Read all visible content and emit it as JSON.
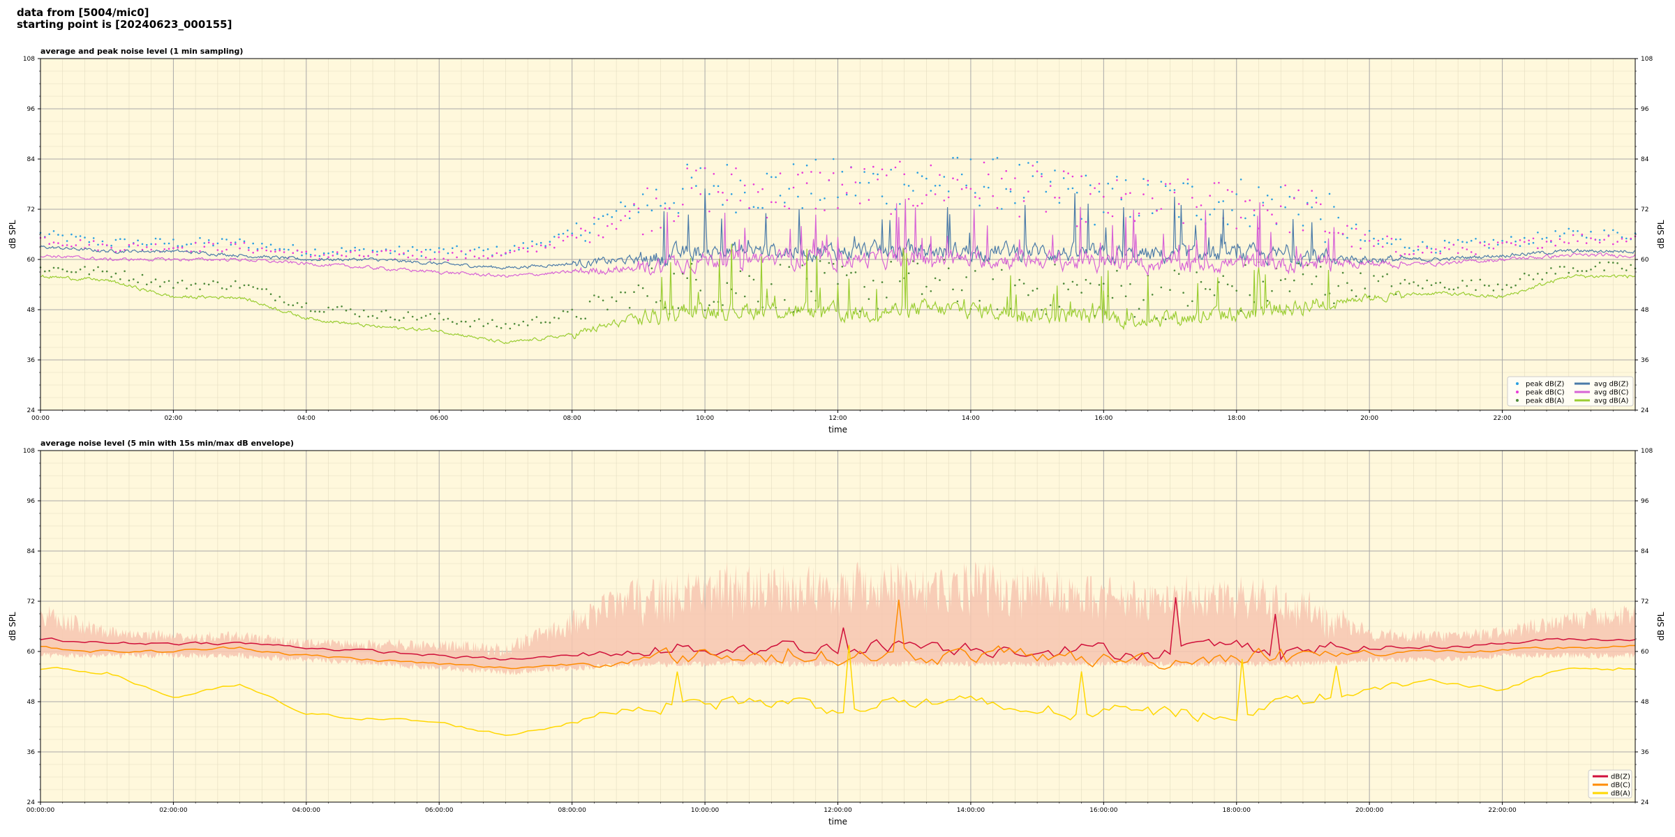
{
  "header": {
    "line1": "data from [5004/mic0]",
    "line2": "starting point is [20240623_000155]"
  },
  "colors": {
    "background": "#fff8dc",
    "dBZ_top": "#4a7aa8",
    "dBC_top": "#d763d6",
    "dBA_top": "#9acd32",
    "dBZ_bottom": "#d0103a",
    "dBC_bottom": "#ff8c00",
    "dBA_bottom": "#ffd700",
    "envelope": "#f7c5b0"
  },
  "chart_data": [
    {
      "type": "line",
      "title": "average and peak noise level (1 min sampling)",
      "xlabel": "time",
      "ylabel": "dB SPL",
      "xlim": [
        0,
        24
      ],
      "ylim": [
        24,
        108
      ],
      "x_ticks": [
        0,
        2,
        4,
        6,
        8,
        10,
        12,
        14,
        16,
        18,
        20,
        22
      ],
      "x_tick_labels": [
        "00:00",
        "02:00",
        "04:00",
        "06:00",
        "08:00",
        "10:00",
        "12:00",
        "14:00",
        "16:00",
        "18:00",
        "20:00",
        "22:00"
      ],
      "y_ticks": [
        24,
        36,
        48,
        60,
        72,
        84,
        96,
        108
      ],
      "grid": true,
      "legend_position": "lower-right",
      "x_hours": [
        0,
        1,
        2,
        3,
        4,
        5,
        6,
        7,
        8,
        9,
        10,
        11,
        12,
        13,
        14,
        15,
        16,
        17,
        18,
        19,
        20,
        21,
        22,
        23,
        24
      ],
      "series": [
        {
          "name": "avg dB(Z)",
          "kind": "line",
          "color": "#4a7aa8",
          "values": [
            63,
            62,
            62,
            61,
            60,
            60,
            59,
            58,
            59,
            60,
            62,
            62,
            62,
            62,
            62,
            62,
            61,
            61,
            61,
            61,
            60,
            60,
            61,
            62,
            62
          ]
        },
        {
          "name": "avg dB(C)",
          "kind": "line",
          "color": "#d763d6",
          "values": [
            61,
            60,
            60,
            60,
            59,
            58,
            57,
            56,
            57,
            58,
            60,
            60,
            60,
            60,
            60,
            60,
            59,
            59,
            59,
            59,
            59,
            59,
            60,
            61,
            61
          ]
        },
        {
          "name": "avg dB(A)",
          "kind": "line",
          "color": "#9acd32",
          "values": [
            56,
            55,
            51,
            51,
            46,
            44,
            43,
            40,
            42,
            46,
            48,
            48,
            47,
            48,
            48,
            47,
            46,
            46,
            47,
            49,
            51,
            52,
            51,
            56,
            56
          ]
        },
        {
          "name": "peak dB(Z)",
          "kind": "scatter",
          "color": "#2b9fe0",
          "values": [
            66,
            64,
            64,
            64,
            62,
            62,
            62,
            62,
            66,
            73,
            78,
            77,
            78,
            78,
            79,
            77,
            74,
            74,
            74,
            73,
            64,
            63,
            64,
            66,
            66
          ]
        },
        {
          "name": "peak dB(C)",
          "kind": "scatter",
          "color": "#e83ad8",
          "values": [
            65,
            63,
            63,
            63,
            61,
            61,
            61,
            61,
            65,
            72,
            77,
            76,
            77,
            77,
            78,
            76,
            73,
            73,
            73,
            72,
            63,
            62,
            63,
            65,
            65
          ]
        },
        {
          "name": "peak dB(A)",
          "kind": "scatter",
          "color": "#4f8a3a",
          "values": [
            58,
            57,
            54,
            54,
            49,
            47,
            46,
            44,
            47,
            52,
            54,
            54,
            53,
            54,
            54,
            53,
            52,
            52,
            53,
            55,
            54,
            54,
            54,
            58,
            58
          ]
        }
      ]
    },
    {
      "type": "line",
      "title": "average noise level (5 min with 15s min/max dB envelope)",
      "xlabel": "time",
      "ylabel": "dB SPL",
      "xlim": [
        0,
        24
      ],
      "ylim": [
        24,
        108
      ],
      "x_ticks": [
        0,
        2,
        4,
        6,
        8,
        10,
        12,
        14,
        16,
        18,
        20,
        22
      ],
      "x_tick_labels": [
        "00:00:00",
        "02:00:00",
        "04:00:00",
        "06:00:00",
        "08:00:00",
        "10:00:00",
        "12:00:00",
        "14:00:00",
        "16:00:00",
        "18:00:00",
        "20:00:00",
        "22:00:00"
      ],
      "y_ticks": [
        24,
        36,
        48,
        60,
        72,
        84,
        96,
        108
      ],
      "grid": true,
      "legend_position": "lower-right",
      "x_hours": [
        0,
        1,
        2,
        3,
        4,
        5,
        6,
        7,
        8,
        9,
        10,
        11,
        12,
        13,
        14,
        15,
        16,
        17,
        18,
        19,
        20,
        21,
        22,
        23,
        24
      ],
      "series": [
        {
          "name": "dB(Z)",
          "color": "#d0103a",
          "values": [
            63,
            62,
            62,
            62,
            61,
            60,
            59,
            58,
            59,
            60,
            61,
            61,
            61,
            62,
            61,
            61,
            60,
            60,
            61,
            61,
            61,
            61,
            62,
            63,
            63
          ]
        },
        {
          "name": "dB(C)",
          "color": "#ff8c00",
          "values": [
            61,
            60,
            60,
            61,
            59,
            58,
            57,
            56,
            57,
            58,
            59,
            59,
            59,
            59,
            59,
            59,
            58,
            58,
            59,
            59,
            60,
            60,
            60,
            61,
            61
          ]
        },
        {
          "name": "dB(A)",
          "color": "#ffd700",
          "values": [
            56,
            55,
            49,
            52,
            45,
            44,
            43,
            40,
            43,
            47,
            48,
            48,
            47,
            48,
            47,
            46,
            45,
            45,
            46,
            48,
            51,
            53,
            51,
            56,
            56
          ]
        }
      ],
      "envelope": {
        "color": "#f7c5b0",
        "min": [
          59,
          59,
          59,
          59,
          58,
          57,
          56,
          55,
          56,
          57,
          57,
          57,
          57,
          57,
          57,
          57,
          57,
          57,
          57,
          57,
          58,
          58,
          59,
          59,
          59
        ],
        "max": [
          72,
          66,
          65,
          65,
          63,
          63,
          63,
          62,
          70,
          78,
          82,
          82,
          82,
          83,
          83,
          82,
          80,
          79,
          79,
          77,
          66,
          65,
          66,
          70,
          72
        ]
      }
    }
  ]
}
